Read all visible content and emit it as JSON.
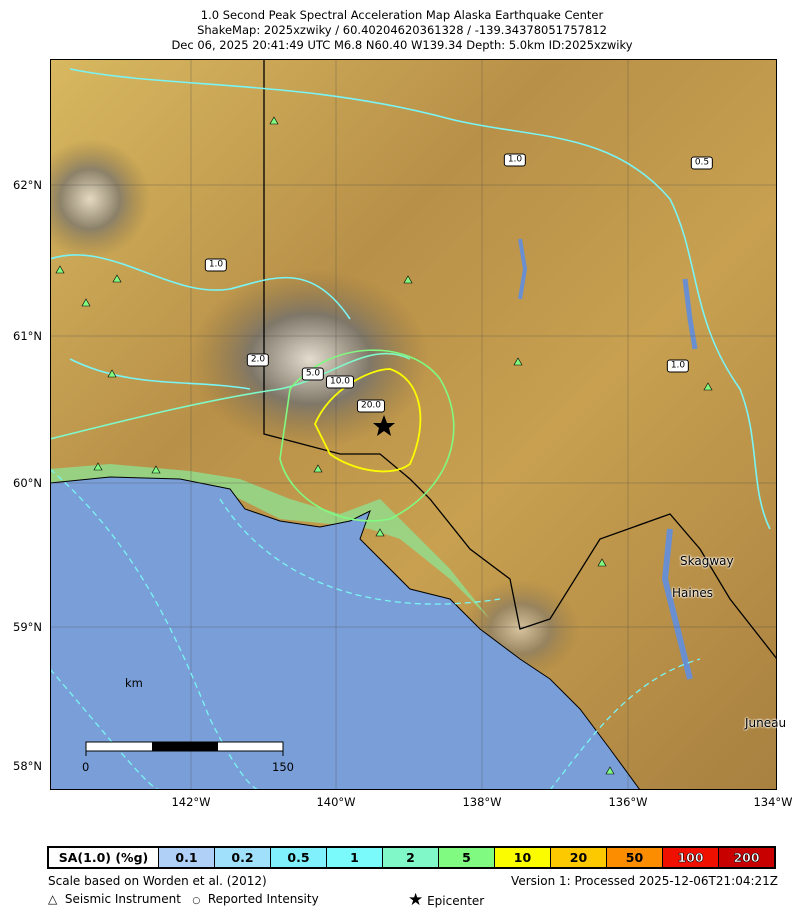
{
  "title": {
    "line1": "1.0 Second Peak Spectral Acceleration Map Alaska Earthquake Center",
    "line2": "ShakeMap: 2025xzwiky / 60.40204620361328 / -139.34378051757812",
    "line3": "Dec 06, 2025 20:41:49 UTC M6.8 N60.40 W139.34 Depth: 5.0km ID:2025xzwiky"
  },
  "axes": {
    "lat_labels": [
      "62°N",
      "61°N",
      "60°N",
      "59°N",
      "58°N"
    ],
    "lon_labels": [
      "142°W",
      "140°W",
      "138°W",
      "136°W",
      "134°W"
    ]
  },
  "contour_labels": [
    "1.0",
    "0.5",
    "1.0",
    "2.0",
    "5.0",
    "10.0",
    "20.0",
    "1.0"
  ],
  "cities": [
    "Skagway",
    "Haines",
    "Juneau"
  ],
  "scale_bar": {
    "unit": "km",
    "start": "0",
    "end": "150"
  },
  "legend": {
    "label": "SA(1.0) (%g)",
    "bins": [
      {
        "value": "0.1",
        "color": "#b0d0f8"
      },
      {
        "value": "0.2",
        "color": "#a0e0fa"
      },
      {
        "value": "0.5",
        "color": "#80f0fc"
      },
      {
        "value": "1",
        "color": "#7afafa"
      },
      {
        "value": "2",
        "color": "#80f8c8"
      },
      {
        "value": "5",
        "color": "#80fa80"
      },
      {
        "value": "10",
        "color": "#fcfc00"
      },
      {
        "value": "20",
        "color": "#fcc800"
      },
      {
        "value": "50",
        "color": "#fc8c00"
      },
      {
        "value": "100",
        "color": "#f01000"
      },
      {
        "value": "200",
        "color": "#c80000"
      }
    ]
  },
  "footer": {
    "scale_note": "Scale based on Worden et al. (2012)",
    "version": "Version 1: Processed 2025-12-06T21:04:21Z",
    "instrument": "Seismic Instrument",
    "intensity": "Reported Intensity",
    "epicenter": "Epicenter"
  },
  "colors": {
    "ocean": "#7a9fd8",
    "land": "#c8a050",
    "contour": "#7af4f4"
  }
}
